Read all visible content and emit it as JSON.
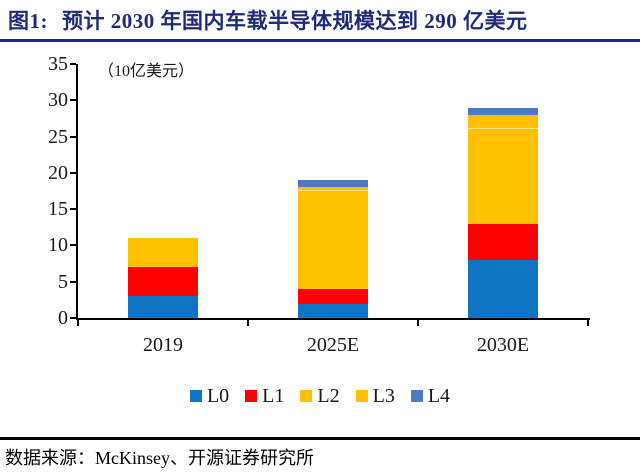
{
  "figure": {
    "label": "图1:",
    "title": "预计 2030 年国内车载半导体规模达到 290 亿美元"
  },
  "chart_data": {
    "type": "bar",
    "stacked": true,
    "title": "预计 2030 年国内车载半导体规模达到 290 亿美元",
    "unit_label": "（10亿美元）",
    "categories": [
      "2019",
      "2025E",
      "2030E"
    ],
    "series": [
      {
        "name": "L0",
        "color": "#0F74C2",
        "values": [
          3,
          2,
          8
        ]
      },
      {
        "name": "L1",
        "color": "#FE0000",
        "values": [
          4,
          2,
          5
        ]
      },
      {
        "name": "L2",
        "color": "#FFC000",
        "values": [
          4,
          13.5,
          13
        ]
      },
      {
        "name": "L3",
        "color": "#FFC000",
        "values": [
          0,
          0.5,
          2
        ]
      },
      {
        "name": "L4",
        "color": "#4C79C4",
        "values": [
          0,
          1,
          1
        ]
      }
    ],
    "totals": [
      11,
      19,
      29
    ],
    "ylim": [
      0,
      35
    ],
    "y_ticks": [
      0,
      5,
      10,
      15,
      20,
      25,
      30,
      35
    ],
    "grid": false,
    "legend_position": "bottom",
    "legend_labels": [
      "L0",
      "L1",
      "L2",
      "L3",
      "L4"
    ]
  },
  "source": {
    "text": "数据来源：McKinsey、开源证券研究所"
  },
  "colors": {
    "title": "#212A7A",
    "axis": "#000000",
    "divider": "#000000"
  }
}
